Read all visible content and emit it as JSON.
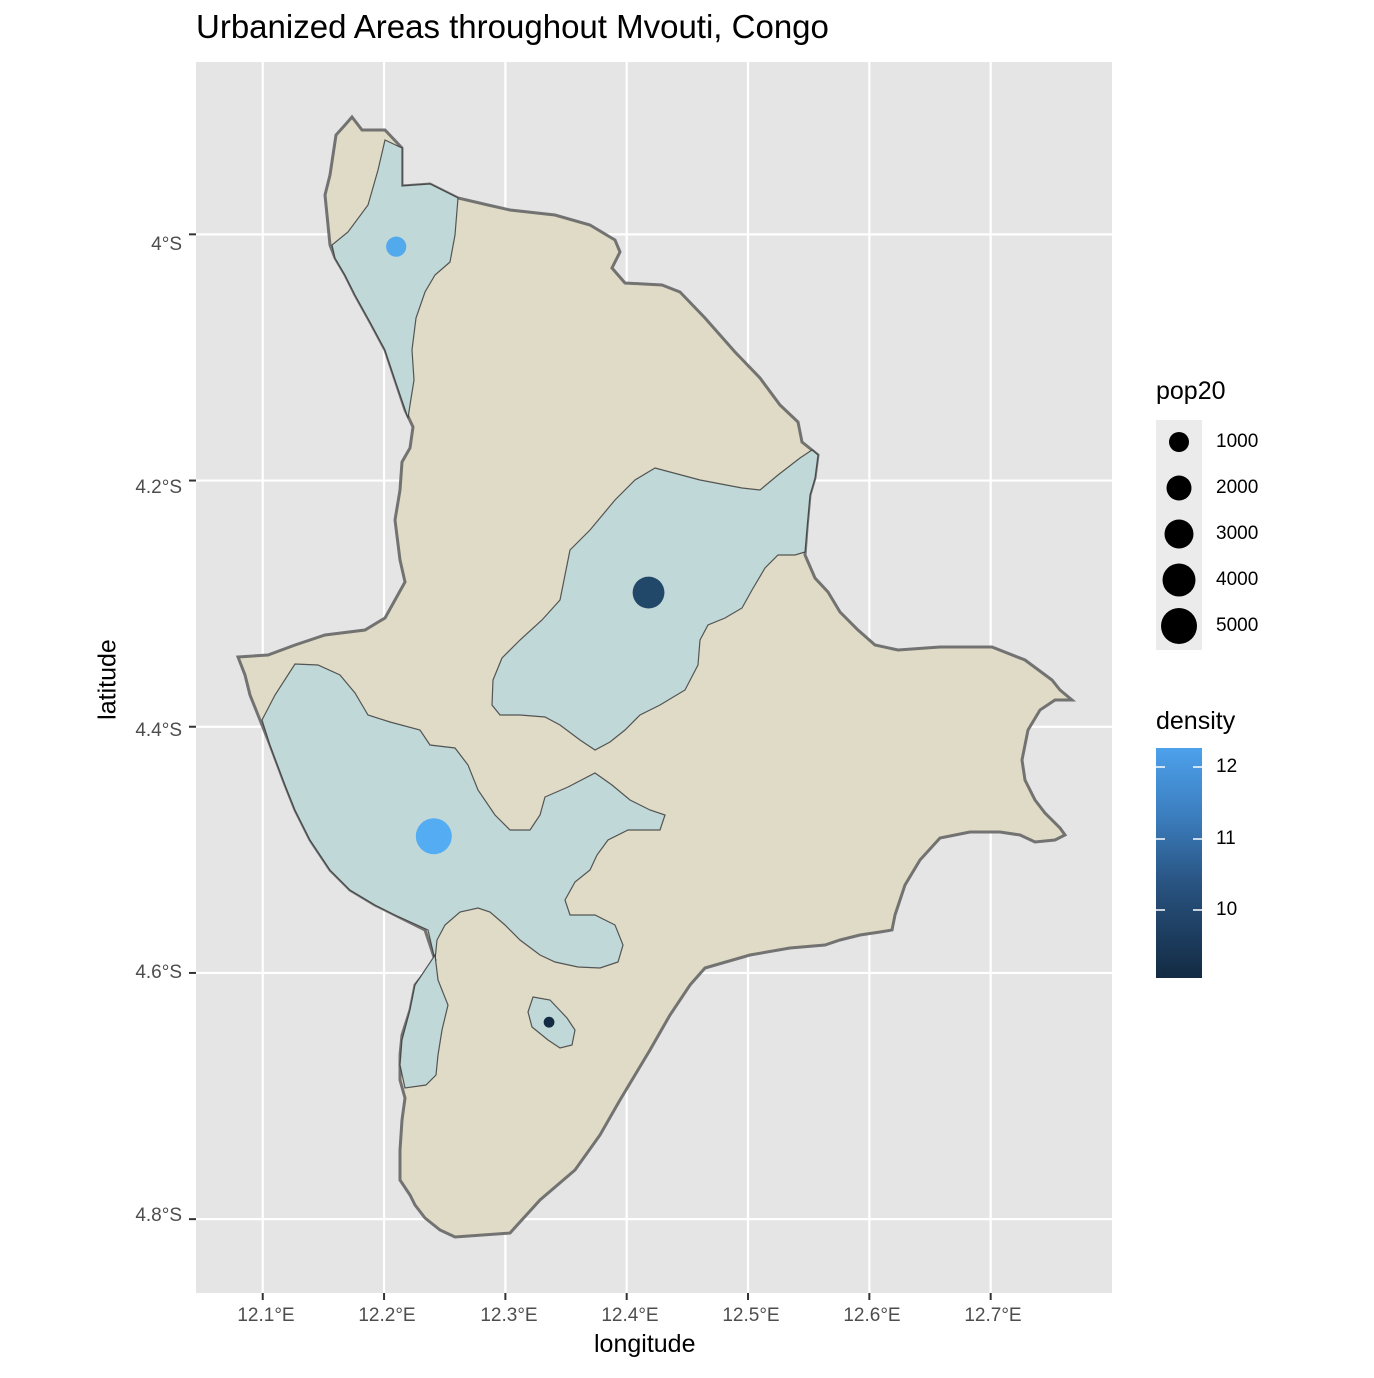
{
  "title": "Urbanized Areas throughout Mvouti, Congo",
  "xlabel": "longitude",
  "ylabel": "latitude",
  "x_ticks": [
    "12.1°E",
    "12.2°E",
    "12.3°E",
    "12.4°E",
    "12.5°E",
    "12.6°E",
    "12.7°E"
  ],
  "y_ticks": [
    "4°S",
    "4.2°S",
    "4.4°S",
    "4.6°S",
    "4.8°S"
  ],
  "legend_size": {
    "title": "pop20",
    "labels": [
      "1000",
      "2000",
      "3000",
      "4000",
      "5000"
    ]
  },
  "legend_color": {
    "title": "density",
    "labels": [
      "12",
      "11",
      "10"
    ]
  },
  "colors": {
    "panel": "#e5e5e5",
    "grid": "#ffffff",
    "district_fill": "#e0dbc6",
    "urban_fill": "#c1d8d9",
    "density_low": "#132b43",
    "density_high": "#56b1f7"
  },
  "chart_data": {
    "type": "map",
    "xlim": [
      12.045,
      12.8
    ],
    "ylim": [
      -4.86,
      -3.86
    ],
    "points": [
      {
        "lon": 12.21,
        "lat": -4.01,
        "pop20": 1300,
        "density": 12.1
      },
      {
        "lon": 12.418,
        "lat": -4.291,
        "pop20": 4300,
        "density": 9.7
      },
      {
        "lon": 12.241,
        "lat": -4.489,
        "pop20": 5800,
        "density": 12.2
      },
      {
        "lon": 12.336,
        "lat": -4.64,
        "pop20": 150,
        "density": 9.0
      }
    ]
  }
}
